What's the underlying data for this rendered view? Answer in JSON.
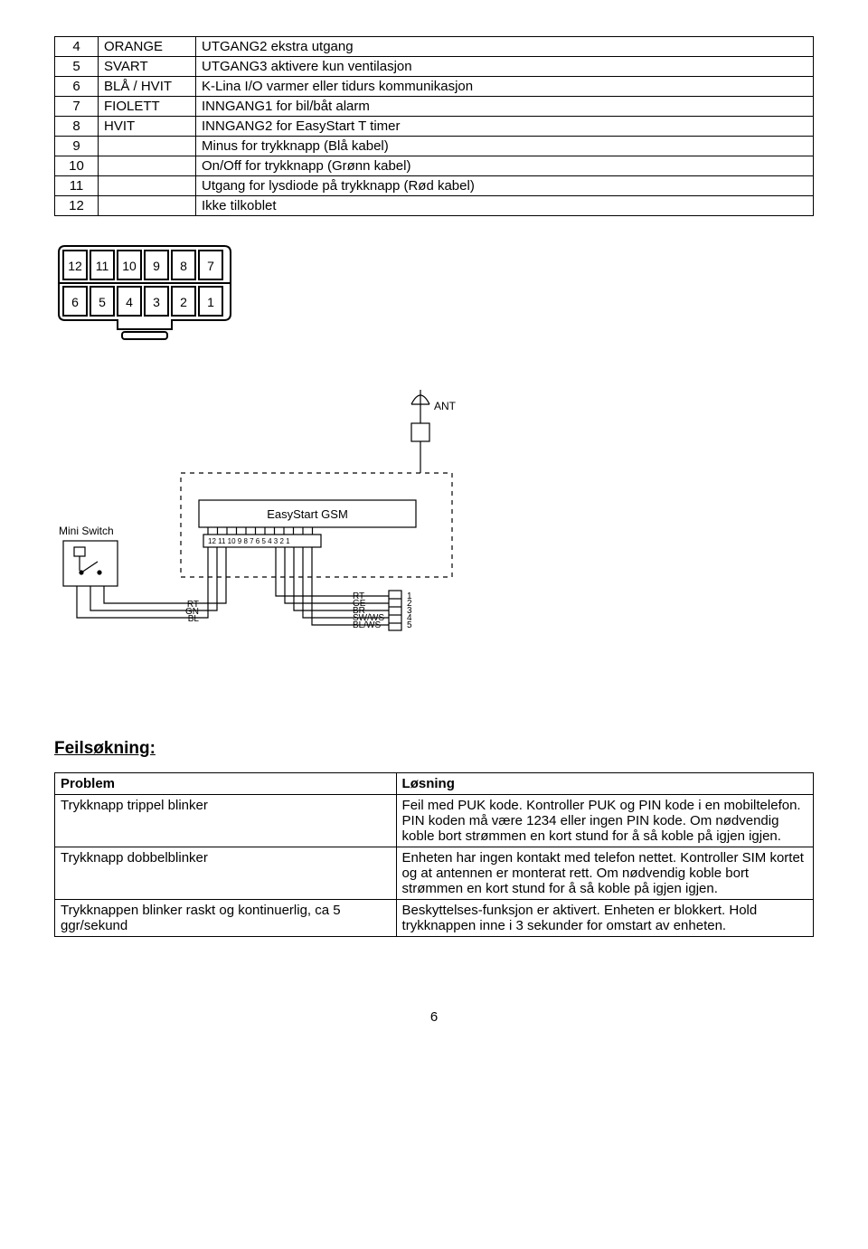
{
  "pin_table": {
    "rows": [
      {
        "n": "4",
        "color": "ORANGE",
        "desc_a": "UTGANG2",
        "desc_b": "ekstra utgang"
      },
      {
        "n": "5",
        "color": "SVART",
        "desc_a": "UTGANG3",
        "desc_b": "aktivere kun ventilasjon"
      },
      {
        "n": "6",
        "color": "BLÅ / HVIT",
        "desc_a": "K-Lina I/O",
        "desc_b": "varmer eller tidurs kommunikasjon"
      },
      {
        "n": "7",
        "color": "FIOLETT",
        "desc_a": "INNGANG1",
        "desc_b": "for bil/båt alarm"
      },
      {
        "n": "8",
        "color": "HVIT",
        "desc_a": "INNGANG2",
        "desc_b": "for EasyStart T timer"
      },
      {
        "n": "9",
        "color": "",
        "desc_a": "Minus",
        "desc_b": "for trykknapp (Blå kabel)"
      },
      {
        "n": "10",
        "color": "",
        "desc_a": "On/Off",
        "desc_b": "for trykknapp (Grønn kabel)"
      },
      {
        "n": "11",
        "color": "",
        "desc_a": "Utgang for lysdiode på trykknapp (Rød kabel)",
        "desc_b": ""
      },
      {
        "n": "12",
        "color": "",
        "desc_a": "Ikke tilkoblet",
        "desc_b": ""
      }
    ]
  },
  "connector": {
    "top_nums": [
      "12",
      "11",
      "10",
      "9",
      "8",
      "7"
    ],
    "bot_nums": [
      "6",
      "5",
      "4",
      "3",
      "2",
      "1"
    ]
  },
  "wiring": {
    "ant_label": "ANT",
    "mini_switch_label": "Mini Switch",
    "module_label": "EasyStart GSM",
    "pins_text": "12 11 10 9  8  7  6  5  4  3  2  1",
    "left_wires": [
      "RT",
      "GN",
      "BL"
    ],
    "right_wires": [
      {
        "label": "RT",
        "num": "1"
      },
      {
        "label": "GE",
        "num": "2"
      },
      {
        "label": "BR",
        "num": "3"
      },
      {
        "label": "SW/WS",
        "num": "4"
      },
      {
        "label": "BL/WS",
        "num": "5"
      }
    ]
  },
  "trouble": {
    "heading": "Feilsøkning:",
    "header_problem": "Problem",
    "header_solution": "Løsning",
    "rows": [
      {
        "p": "Trykknapp trippel blinker",
        "s": "Feil med PUK kode. Kontroller PUK og PIN kode i en mobiltelefon. PIN koden må være 1234 eller ingen PIN kode. Om nødvendig koble bort strømmen en kort stund for å så koble på igjen igjen."
      },
      {
        "p": "Trykknapp dobbelblinker",
        "s": "Enheten har ingen kontakt med telefon nettet. Kontroller SIM kortet og at antennen er monterat rett. Om nødvendig koble bort strømmen en kort stund for å så koble på igjen igjen."
      },
      {
        "p": "Trykknappen blinker raskt og kontinuerlig, ca 5 ggr/sekund",
        "s": "Beskyttelses-funksjon er aktivert. Enheten er blokkert. Hold trykknappen inne i 3 sekunder for omstart av enheten."
      }
    ]
  },
  "page_number": "6"
}
